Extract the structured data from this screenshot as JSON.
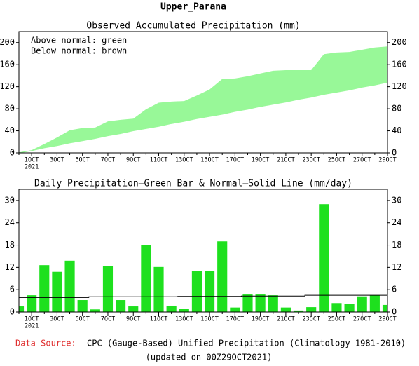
{
  "title": "Upper_Parana",
  "chart_data": [
    {
      "type": "range_area",
      "title": "Observed Accumulated Precipitation (mm)",
      "annotations": [
        "Above normal: green",
        "Below normal: brown"
      ],
      "year_label": "2021",
      "categories": [
        null,
        "1OCT",
        null,
        "3OCT",
        null,
        "5OCT",
        null,
        "7OCT",
        null,
        "9OCT",
        null,
        "11OCT",
        null,
        "13OCT",
        null,
        "15OCT",
        null,
        "17OCT",
        null,
        "19OCT",
        null,
        "21OCT",
        null,
        "23OCT",
        null,
        "25OCT",
        null,
        "27OCT",
        null,
        "29OCT"
      ],
      "series": [
        {
          "color": "#98f898",
          "values": [
            1,
            5,
            16,
            28,
            41,
            45,
            46,
            57,
            60,
            62,
            79,
            91,
            93,
            94,
            104,
            115,
            134,
            135,
            139,
            144,
            149,
            150,
            150,
            150,
            179,
            182,
            183,
            187,
            191,
            193
          ]
        },
        {
          "color": "#98f898",
          "values": [
            0,
            4,
            9,
            13,
            18,
            22,
            26,
            31,
            35,
            40,
            44,
            48,
            53,
            57,
            62,
            66,
            70,
            75,
            79,
            84,
            88,
            92,
            97,
            101,
            106,
            110,
            114,
            119,
            123,
            128
          ]
        }
      ],
      "below_color": "#c08060",
      "ylim": [
        0,
        220
      ],
      "yticks": [
        0,
        40,
        80,
        120,
        160,
        200
      ]
    },
    {
      "type": "bar",
      "title": "Daily Precipitation—Green Bar & Normal—Solid Line (mm/day)",
      "year_label": "2021",
      "categories": [
        null,
        "1OCT",
        null,
        "3OCT",
        null,
        "5OCT",
        null,
        "7OCT",
        null,
        "9OCT",
        null,
        "11OCT",
        null,
        "13OCT",
        null,
        "15OCT",
        null,
        "17OCT",
        null,
        "19OCT",
        null,
        "21OCT",
        null,
        "23OCT",
        null,
        "25OCT",
        null,
        "27OCT",
        null,
        "29OCT"
      ],
      "series": [
        {
          "type": "bar",
          "color": "#1ee01e",
          "values": [
            1.5,
            4.5,
            12.6,
            10.8,
            13.8,
            3.2,
            0.7,
            12.3,
            3.2,
            1.5,
            18.1,
            12.1,
            1.7,
            0.8,
            11,
            11,
            19,
            1.2,
            4.7,
            4.7,
            4.5,
            1.2,
            0.4,
            1.3,
            29,
            2.4,
            2.2,
            4.2,
            4.5,
            1.9
          ]
        },
        {
          "type": "line",
          "color": "#000000",
          "values": [
            3.9,
            3.9,
            3.9,
            3.9,
            3.9,
            3.9,
            4.1,
            4.1,
            4.1,
            4.1,
            4.1,
            4.1,
            4.1,
            4.2,
            4.2,
            4.2,
            4.2,
            4.2,
            4.3,
            4.3,
            4.3,
            4.3,
            4.3,
            4.5,
            4.5,
            4.5,
            4.5,
            4.5,
            4.5,
            4.5
          ]
        }
      ],
      "ylim": [
        0,
        33
      ],
      "yticks": [
        0,
        6,
        12,
        18,
        24,
        30
      ]
    }
  ],
  "footer": {
    "source_label": "Data Source:",
    "source_text": "CPC (Gauge-Based) Unified Precipitation (Climatology 1981-2010)",
    "updated": "(updated on 00Z29OCT2021)"
  }
}
